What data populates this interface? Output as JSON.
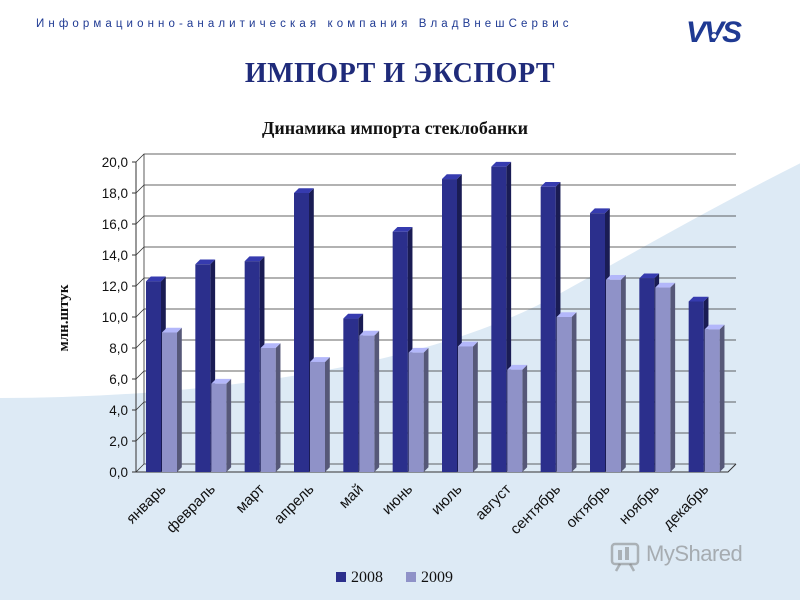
{
  "header": {
    "company": "Информационно-аналитическая компания ВладВнешСервис",
    "logo_text": "VVS",
    "title": "ИМПОРТ И ЭКСПОРТ"
  },
  "watermark": {
    "text": "MyShared"
  },
  "colors": {
    "series_2008": "#2b2f8c",
    "series_2009": "#8f92c8",
    "title": "#1f2b7a",
    "wave": "#ddeaf5"
  },
  "chart_data": {
    "type": "bar",
    "title": "Динамика импорта стеклобанки",
    "ylabel": "млн.штук",
    "xlabel": "",
    "ylim": [
      0,
      20
    ],
    "yticks": [
      "0,0",
      "2,0",
      "4,0",
      "6,0",
      "8,0",
      "10,0",
      "12,0",
      "14,0",
      "16,0",
      "18,0",
      "20,0"
    ],
    "categories": [
      "январь",
      "февраль",
      "март",
      "апрель",
      "май",
      "июнь",
      "июль",
      "август",
      "сентябрь",
      "октябрь",
      "ноябрь",
      "декабрь"
    ],
    "series": [
      {
        "name": "2008",
        "values": [
          12.3,
          13.4,
          13.6,
          18.0,
          9.9,
          15.5,
          18.9,
          19.7,
          18.4,
          16.7,
          12.5,
          11.0
        ]
      },
      {
        "name": "2009",
        "values": [
          9.0,
          5.7,
          8.0,
          7.1,
          8.8,
          7.7,
          8.1,
          6.6,
          10.0,
          12.4,
          11.9,
          9.2
        ]
      }
    ],
    "grid": true,
    "legend": "bottom-center"
  }
}
